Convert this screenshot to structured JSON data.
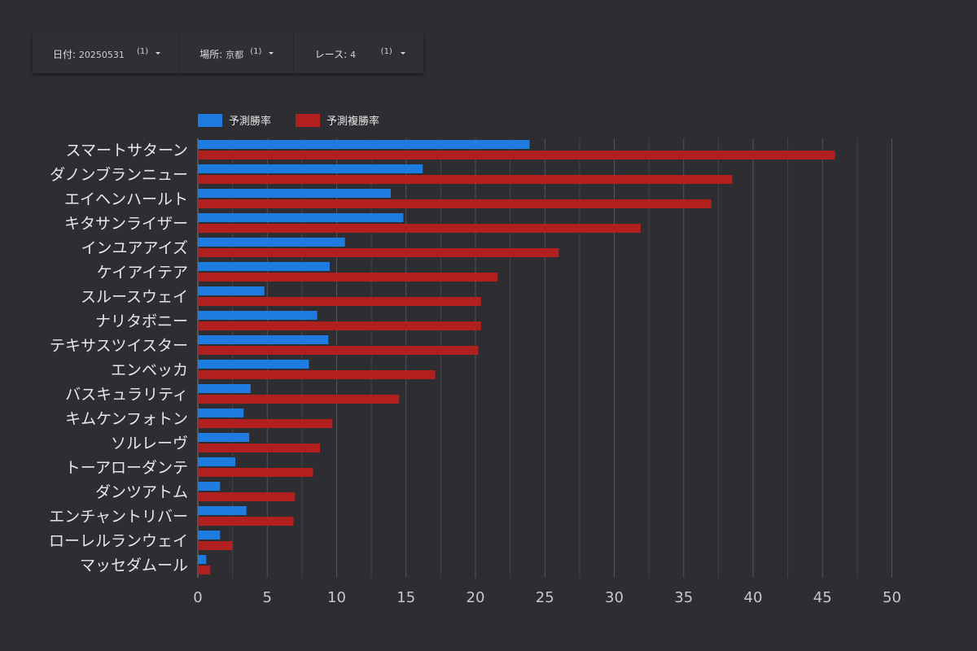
{
  "filters": [
    {
      "label": "日付",
      "value": "20250531",
      "count": "(1)"
    },
    {
      "label": "場所",
      "value": "京都",
      "count": "(1)"
    },
    {
      "label": "レース",
      "value": "4",
      "count": "(1)"
    }
  ],
  "chart_data": {
    "type": "bar",
    "orientation": "horizontal",
    "categories": [
      "スマートサターン",
      "ダノンブランニュー",
      "エイヘンハールト",
      "キタサンライザー",
      "インユアアイズ",
      "ケイアイテア",
      "スルースウェイ",
      "ナリタボニー",
      "テキサスツイスター",
      "エンベッカ",
      "バスキュラリティ",
      "キムケンフォトン",
      "ソルレーヴ",
      "トーアローダンテ",
      "ダンツアトム",
      "エンチャントリバー",
      "ローレルランウェイ",
      "マッセダムール"
    ],
    "series": [
      {
        "name": "予測勝率",
        "color": "#1e7be0",
        "values": [
          23.9,
          16.2,
          13.9,
          14.8,
          10.6,
          9.5,
          4.8,
          8.6,
          9.4,
          8.0,
          3.8,
          3.3,
          3.7,
          2.7,
          1.6,
          3.5,
          1.6,
          0.6
        ]
      },
      {
        "name": "予測複勝率",
        "color": "#b11f1f",
        "values": [
          45.9,
          38.5,
          37.0,
          31.9,
          26.0,
          21.6,
          20.4,
          20.4,
          20.2,
          17.1,
          14.5,
          9.7,
          8.8,
          8.3,
          7.0,
          6.9,
          2.5,
          0.9
        ]
      }
    ],
    "xticks": [
      0,
      5,
      10,
      15,
      20,
      25,
      30,
      35,
      40,
      45,
      50
    ],
    "xlim": [
      0,
      50
    ],
    "grid": true,
    "legend": "top-left"
  }
}
